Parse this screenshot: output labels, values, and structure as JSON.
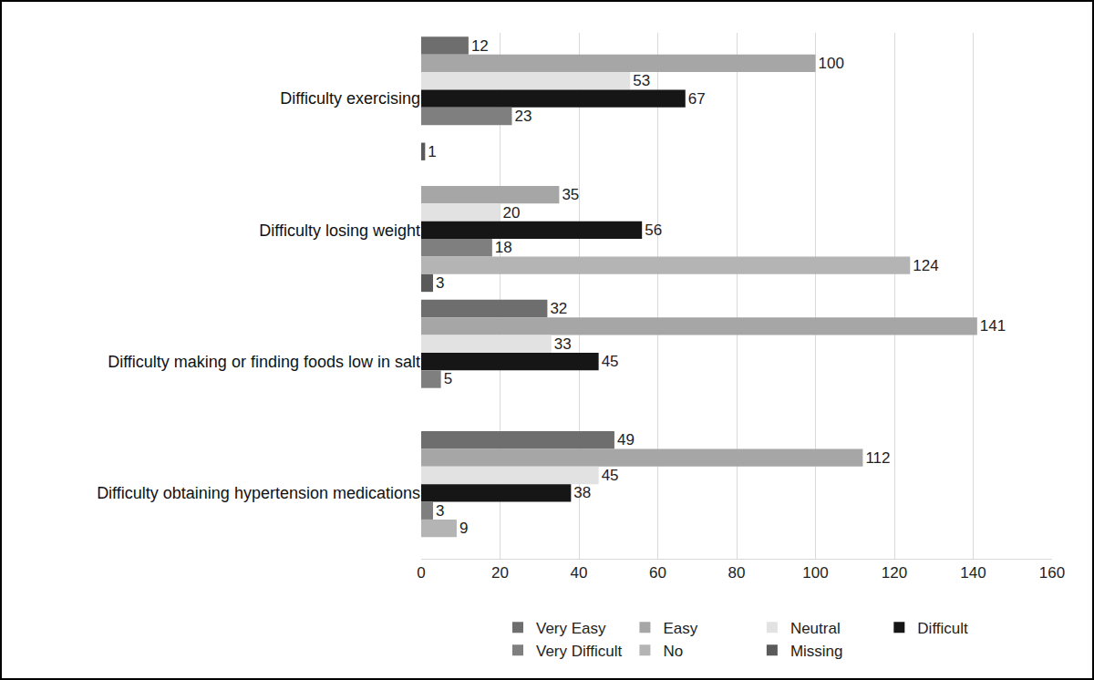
{
  "chart_data": {
    "type": "bar",
    "orientation": "horizontal",
    "categories": [
      "Difficulty exercising",
      "Difficulty losing weight",
      "Difficulty making or finding foods low in salt",
      "Difficulty obtaining hypertension medications"
    ],
    "series": [
      {
        "name": "Very Easy",
        "color": "#6e6e6e",
        "values": [
          12,
          null,
          32,
          49
        ]
      },
      {
        "name": "Easy",
        "color": "#a6a6a6",
        "values": [
          100,
          35,
          141,
          112
        ]
      },
      {
        "name": "Neutral",
        "color": "#e2e2e2",
        "values": [
          53,
          20,
          33,
          45
        ]
      },
      {
        "name": "Difficult",
        "color": "#161616",
        "values": [
          67,
          56,
          45,
          38
        ]
      },
      {
        "name": "Very Difficult",
        "color": "#7f7f7f",
        "values": [
          23,
          18,
          5,
          3
        ]
      },
      {
        "name": "No",
        "color": "#b4b4b4",
        "values": [
          null,
          124,
          null,
          9
        ]
      },
      {
        "name": "Missing",
        "color": "#5a5a5a",
        "values": [
          1,
          3,
          null,
          null
        ]
      }
    ],
    "xlim": [
      0,
      160
    ],
    "xticks": [
      0,
      20,
      40,
      60,
      80,
      100,
      120,
      140,
      160
    ],
    "grid": true,
    "data_labels": true,
    "legend": "bottom"
  }
}
